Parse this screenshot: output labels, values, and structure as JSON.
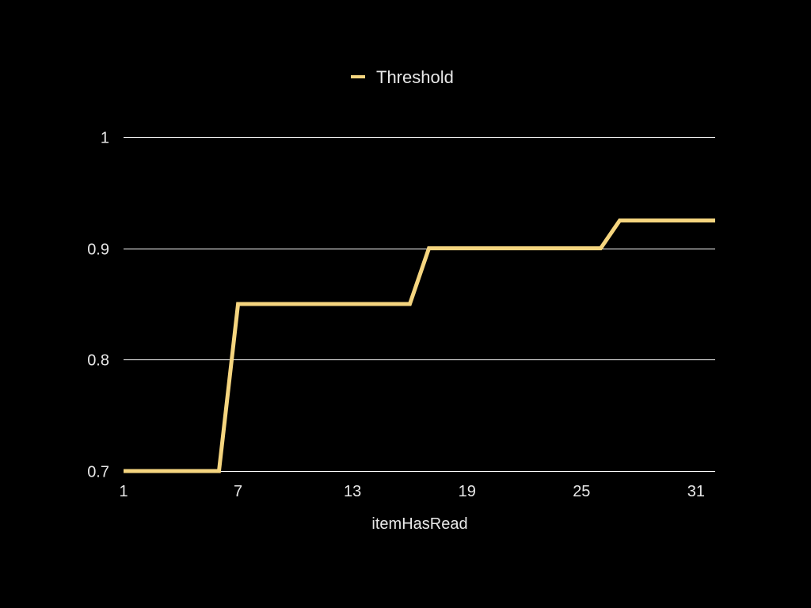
{
  "chart_data": {
    "type": "line",
    "title": "",
    "xlabel": "itemHasRead",
    "ylabel": "",
    "x": [
      1,
      2,
      3,
      4,
      5,
      6,
      7,
      8,
      9,
      10,
      11,
      12,
      13,
      14,
      15,
      16,
      17,
      18,
      19,
      20,
      21,
      22,
      23,
      24,
      25,
      26,
      27,
      28,
      29,
      30,
      31,
      32
    ],
    "xticks": [
      "1",
      "7",
      "13",
      "19",
      "25",
      "31"
    ],
    "xtick_values": [
      1,
      7,
      13,
      19,
      25,
      31
    ],
    "xlim": [
      1,
      32
    ],
    "yticks": [
      "0.7",
      "0.8",
      "0.9",
      "1"
    ],
    "ytick_values": [
      0.7,
      0.8,
      0.9,
      1.0
    ],
    "ylim": [
      0.7,
      1.0
    ],
    "grid": "horizontal",
    "legend_position": "top-center",
    "series": [
      {
        "name": "Threshold",
        "color": "#f5d57f",
        "values": [
          0.7,
          0.7,
          0.7,
          0.7,
          0.7,
          0.7,
          0.85,
          0.85,
          0.85,
          0.85,
          0.85,
          0.85,
          0.85,
          0.85,
          0.85,
          0.85,
          0.9,
          0.9,
          0.9,
          0.9,
          0.9,
          0.9,
          0.9,
          0.9,
          0.9,
          0.9,
          0.925,
          0.925,
          0.925,
          0.925,
          0.925,
          0.925
        ]
      }
    ],
    "colors": {
      "background": "#000000",
      "grid": "#ffffff",
      "text": "#e8e8e8"
    }
  }
}
